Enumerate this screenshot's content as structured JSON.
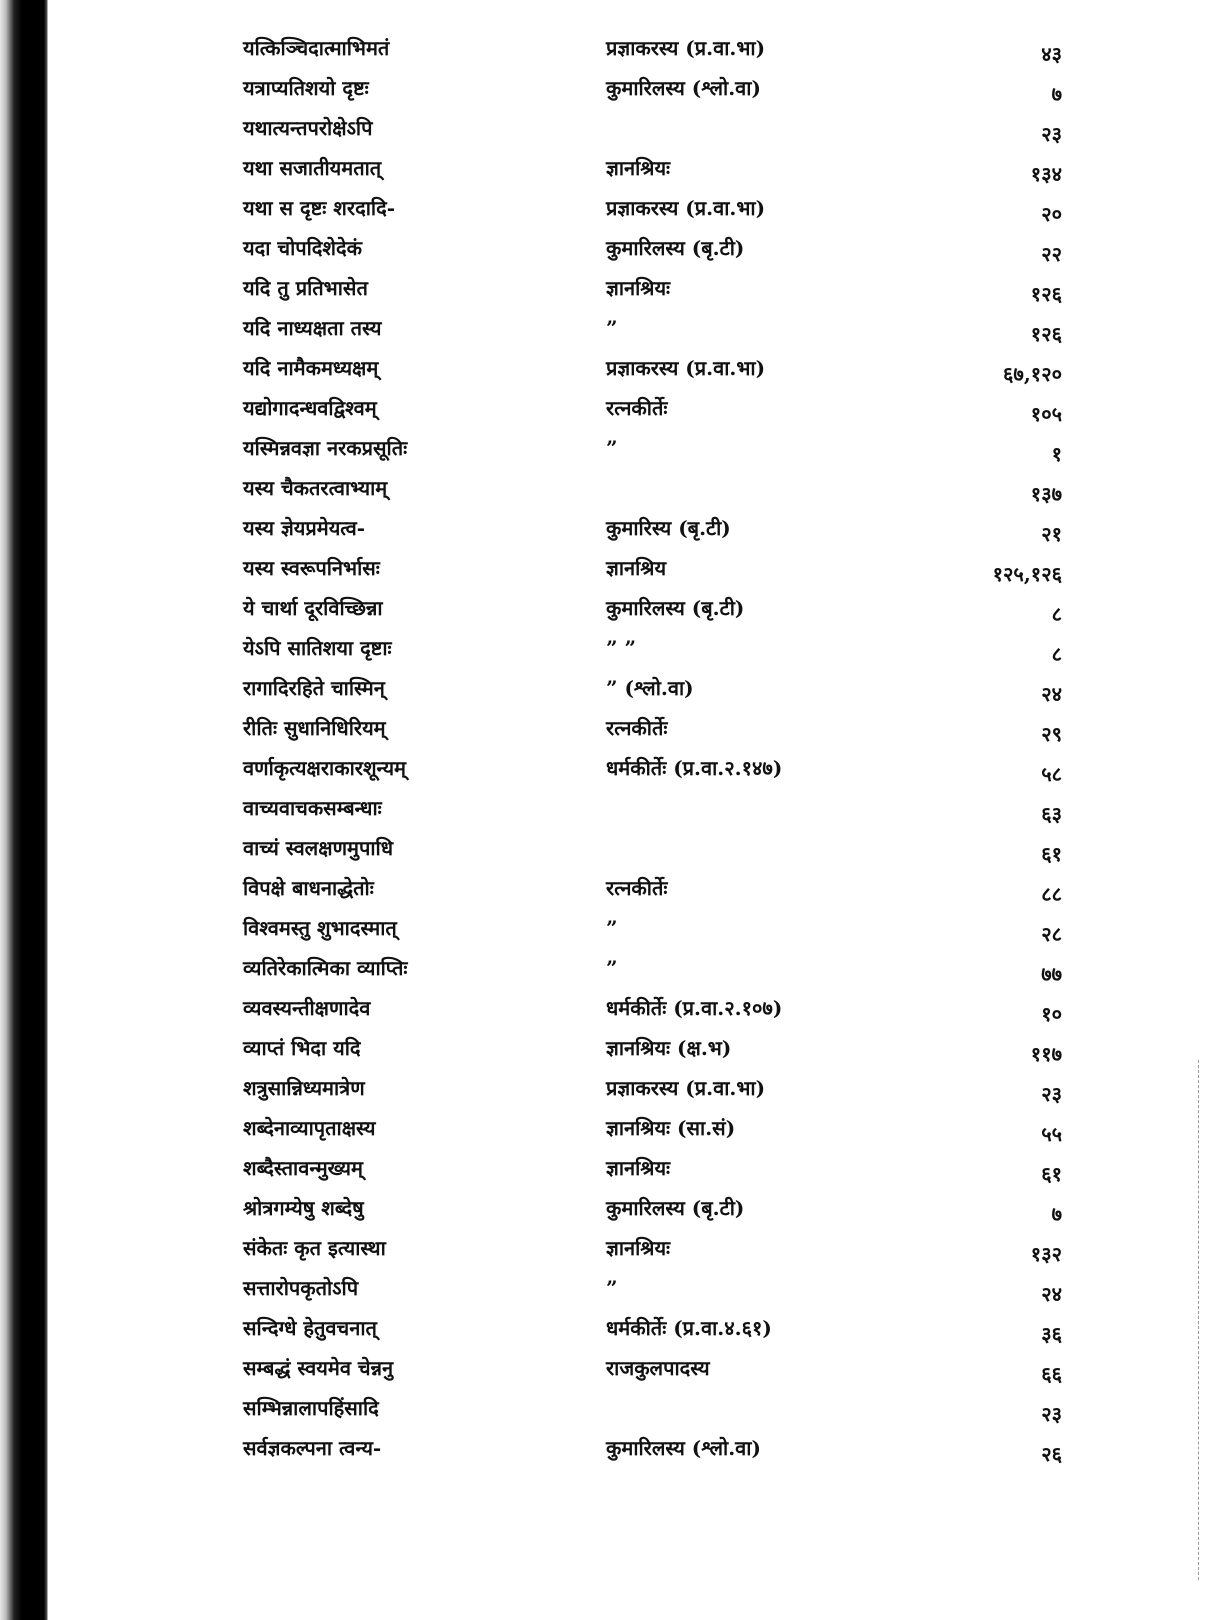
{
  "index_entries": [
    {
      "verse": "यत्किञ्चिदात्माभिमतं",
      "source": "प्रज्ञाकरस्य (प्र.वा.भा)",
      "page": "४३"
    },
    {
      "verse": "यत्राप्यतिशयो दृष्टः",
      "source": "कुमारिलस्य (श्लो.वा)",
      "page": "७"
    },
    {
      "verse": "यथात्यन्तपरोक्षेऽपि",
      "source": "",
      "page": "२३"
    },
    {
      "verse": "यथा सजातीयमतात्",
      "source": "ज्ञानश्रियः",
      "page": "१३४"
    },
    {
      "verse": "यथा स दृष्टः शरदादि-",
      "source": "प्रज्ञाकरस्य (प्र.वा.भा)",
      "page": "२०"
    },
    {
      "verse": "यदा चोपदिशेदेकं",
      "source": "कुमारिलस्य (बृ.टी)",
      "page": "२२"
    },
    {
      "verse": "यदि तु प्रतिभासेत",
      "source": "ज्ञानश्रियः",
      "page": "१२६"
    },
    {
      "verse": "यदि नाध्यक्षता तस्य",
      "source": "”",
      "page": "१२६"
    },
    {
      "verse": "यदि नामैकमध्यक्षम्",
      "source": "प्रज्ञाकरस्य (प्र.वा.भा)",
      "page": "६७,१२०"
    },
    {
      "verse": "यद्योगादन्धवद्विश्वम्",
      "source": "रत्नकीर्तेः",
      "page": "१०५"
    },
    {
      "verse": "यस्मिन्नवज्ञा नरकप्रसूतिः",
      "source": "”",
      "page": "१"
    },
    {
      "verse": "यस्य चैकतरत्वाभ्याम्",
      "source": "",
      "page": "१३७"
    },
    {
      "verse": "यस्य ज्ञेयप्रमेयत्व-",
      "source": "कुमारिस्य (बृ.टी)",
      "page": "२१"
    },
    {
      "verse": "यस्य स्वरूपनिर्भासः",
      "source": "ज्ञानश्रिय",
      "page": "१२५,१२६"
    },
    {
      "verse": "ये चार्था दूरविच्छिन्ना",
      "source": "कुमारिलस्य (बृ.टी)",
      "page": "८"
    },
    {
      "verse": "येऽपि सातिशया दृष्टाः",
      "source": "”      ”",
      "page": "८"
    },
    {
      "verse": "रागादिरहिते चास्मिन्",
      "source": "” (श्लो.वा)",
      "page": "२४"
    },
    {
      "verse": "रीतिः सुधानिधिरियम्",
      "source": "रत्नकीर्तेः",
      "page": "२९"
    },
    {
      "verse": "वर्णाकृत्यक्षराकारशून्यम्",
      "source": "धर्मकीर्तेः (प्र.वा.२.१४७)",
      "page": "५८"
    },
    {
      "verse": "वाच्यवाचकसम्बन्धाः",
      "source": "",
      "page": "६३"
    },
    {
      "verse": "वाच्यं स्वलक्षणमुपाधि",
      "source": "",
      "page": "६१"
    },
    {
      "verse": "विपक्षे बाधनाद्धेतोः",
      "source": "रत्नकीर्तेः",
      "page": "८८"
    },
    {
      "verse": "विश्वमस्तु शुभादस्मात्",
      "source": "”",
      "page": "२८"
    },
    {
      "verse": "व्यतिरेकात्मिका व्याप्तिः",
      "source": "”",
      "page": "७७"
    },
    {
      "verse": "व्यवस्यन्तीक्षणादेव",
      "source": "धर्मकीर्तेः (प्र.वा.२.१०७)",
      "page": "१०"
    },
    {
      "verse": "व्याप्तं भिदा यदि",
      "source": "ज्ञानश्रियः (क्ष.भ)",
      "page": "११७"
    },
    {
      "verse": "शत्रुसान्निध्यमात्रेण",
      "source": "प्रज्ञाकरस्य (प्र.वा.भा)",
      "page": "२३"
    },
    {
      "verse": "शब्देनाव्यापृताक्षस्य",
      "source": "ज्ञानश्रियः (सा.सं)",
      "page": "५५"
    },
    {
      "verse": "शब्दैस्तावन्मुख्यम्",
      "source": "ज्ञानश्रियः",
      "page": "६१"
    },
    {
      "verse": "श्रोत्रगम्येषु शब्देषु",
      "source": "कुमारिलस्य (बृ.टी)",
      "page": "७"
    },
    {
      "verse": "संकेतः कृत इत्यास्था",
      "source": "ज्ञानश्रियः",
      "page": "१३२"
    },
    {
      "verse": "सत्तारोपकृतोऽपि",
      "source": "”",
      "page": "२४"
    },
    {
      "verse": "सन्दिग्धे हेतुवचनात्",
      "source": "धर्मकीर्तेः (प्र.वा.४.६१)",
      "page": "३६"
    },
    {
      "verse": "सम्बद्धं स्वयमेव चेन्ननु",
      "source": "राजकुलपादस्य",
      "page": "६६"
    },
    {
      "verse": "सम्भिन्नालापहिंसादि",
      "source": "",
      "page": "२३"
    },
    {
      "verse": "सर्वज्ञकल्पना त्वन्य-",
      "source": "कुमारिलस्य (श्लो.वा)",
      "page": "२६"
    }
  ]
}
